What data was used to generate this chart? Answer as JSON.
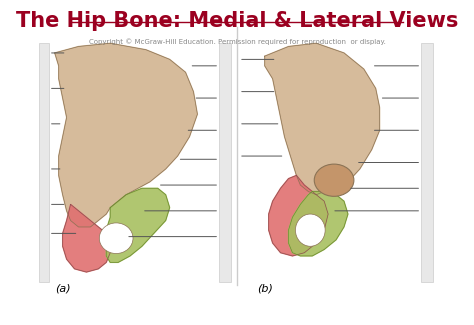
{
  "title": "The Hip Bone: Medial & Lateral Views",
  "title_color": "#9B0020",
  "title_fontsize": 15,
  "copyright_text": "Copyright © McGraw-Hill Education. Permission required for reproduction  or display.",
  "copyright_fontsize": 5,
  "label_a": "(a)",
  "label_b": "(b)",
  "bone_tan": "#D4B896",
  "bone_tan_dark": "#C4956A",
  "bone_red": "#E07070",
  "bone_green": "#A8C060",
  "bone_outline": "#8B7355",
  "bone_red_outline": "#8B5050",
  "bone_green_outline": "#6B8B30",
  "line_color": "#555555",
  "divider_color": "#cccccc",
  "bracket_face": "#e8e8e8",
  "bracket_edge": "#cccccc"
}
